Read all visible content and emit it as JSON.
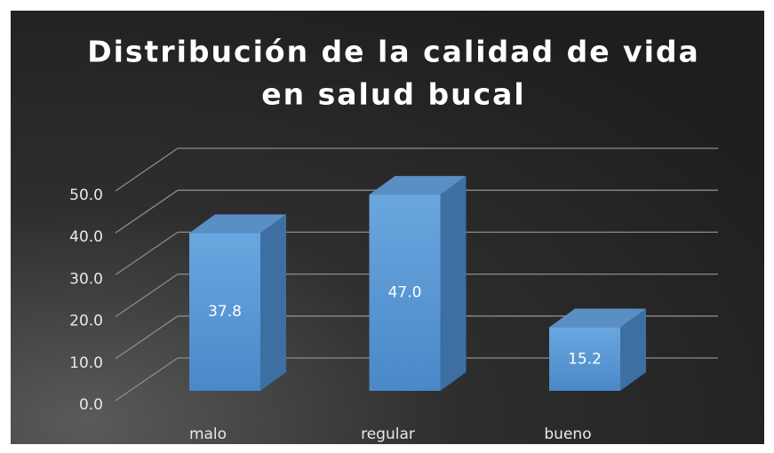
{
  "chart_data": {
    "type": "bar3d",
    "title": [
      "Distribución de la calidad de vida",
      "en salud bucal"
    ],
    "categories": [
      "malo",
      "regular",
      "bueno"
    ],
    "values": [
      37.8,
      47.0,
      15.2
    ],
    "value_labels": [
      "37.8",
      "47.0",
      "15.2"
    ],
    "color": "#5b9bd5",
    "ylim": [
      0,
      50
    ],
    "yticks": [
      {
        "value": 0,
        "label": "0.0"
      },
      {
        "value": 10,
        "label": "10.0"
      },
      {
        "value": 20,
        "label": "20.0"
      },
      {
        "value": 30,
        "label": "30.0"
      },
      {
        "value": 40,
        "label": "40.0"
      },
      {
        "value": 50,
        "label": "50.0"
      }
    ],
    "grid": true
  }
}
